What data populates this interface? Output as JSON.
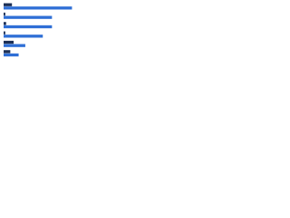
{
  "chart_data": {
    "type": "hbar",
    "categories": [
      null,
      null,
      null,
      null,
      null,
      null
    ],
    "series": [
      {
        "color": "#1c2f55",
        "values": [
          10,
          2,
          3,
          2,
          12,
          8
        ]
      },
      {
        "color": "#2f6fd6",
        "values": [
          82,
          58,
          58,
          47,
          26,
          18
        ]
      }
    ],
    "xlim": [
      0,
      100
    ]
  }
}
